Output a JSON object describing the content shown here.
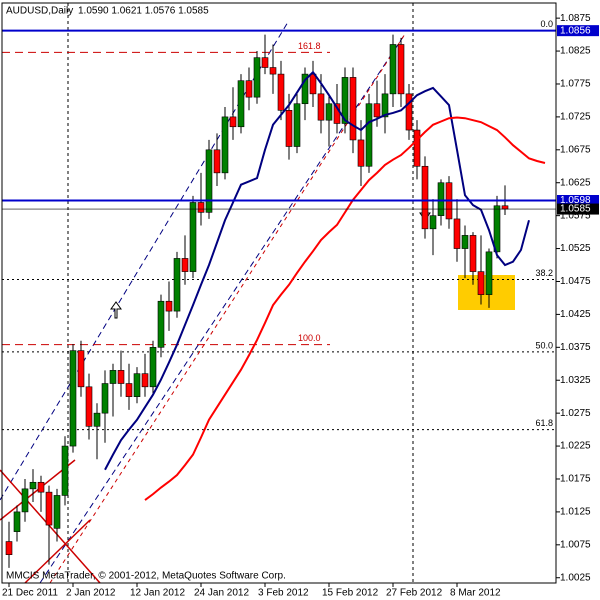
{
  "chart_data": {
    "type": "candlestick",
    "title": "AUDUSD,Daily",
    "ohlc_label": "1.0590 1.0621 1.0576 1.0585",
    "footer": "MMCIS MetaTrader, © 2001-2012, MetaQuotes Software Corp.",
    "categories": [
      "21 Dec 2011",
      null,
      null,
      null,
      null,
      null,
      null,
      null,
      "2 Jan 2012",
      null,
      null,
      null,
      null,
      null,
      null,
      null,
      "12 Jan 2012",
      null,
      null,
      null,
      null,
      null,
      null,
      null,
      "24 Jan 2012",
      null,
      null,
      null,
      null,
      null,
      null,
      null,
      "3 Feb 2012",
      null,
      null,
      null,
      null,
      null,
      null,
      null,
      "15 Feb 2012",
      null,
      null,
      null,
      null,
      null,
      null,
      null,
      "27 Feb 2012",
      null,
      null,
      null,
      null,
      null,
      null,
      null,
      "8 Mar 2012",
      null,
      null,
      null,
      null,
      null,
      null,
      null,
      null,
      null,
      null,
      null
    ],
    "open": [
      1.008,
      1.0095,
      1.0125,
      1.016,
      1.017,
      1.0155,
      1.01,
      1.015,
      1.0225,
      1.037,
      1.0315,
      1.0255,
      1.0275,
      1.032,
      1.034,
      1.032,
      1.03,
      1.0335,
      1.0315,
      1.0375,
      1.0445,
      1.043,
      1.051,
      1.049,
      1.0595,
      1.058,
      1.0675,
      1.064,
      1.0725,
      1.071,
      1.078,
      1.0755,
      1.0815,
      1.08,
      1.079,
      1.0735,
      1.068,
      1.0745,
      1.079,
      1.076,
      1.072,
      1.0745,
      1.0715,
      1.0785,
      1.069,
      1.065,
      1.0745,
      1.0725,
      1.076,
      1.0835,
      1.076,
      1.0705,
      1.065,
      1.0555,
      1.0575,
      1.0625,
      1.057,
      1.0525,
      1.0545,
      1.049,
      1.0455,
      1.052,
      1.059,
      null,
      null,
      null,
      null,
      null
    ],
    "high": [
      1.011,
      1.0135,
      1.0175,
      1.019,
      1.018,
      1.0165,
      1.016,
      1.024,
      1.038,
      1.0385,
      1.0335,
      1.029,
      1.034,
      1.035,
      1.037,
      1.035,
      1.0345,
      1.0365,
      1.0385,
      1.0455,
      1.0475,
      1.052,
      1.0545,
      1.0605,
      1.064,
      1.069,
      1.07,
      1.074,
      1.077,
      1.079,
      1.08,
      1.0825,
      1.085,
      1.0835,
      1.081,
      1.076,
      1.076,
      1.08,
      1.081,
      1.079,
      1.076,
      1.0775,
      1.08,
      1.08,
      1.072,
      1.076,
      1.078,
      1.079,
      1.085,
      1.0845,
      1.0775,
      1.072,
      1.0665,
      1.06,
      1.063,
      1.0635,
      1.06,
      1.056,
      1.055,
      1.0545,
      1.0525,
      1.0605,
      1.0621,
      null,
      null,
      null,
      null,
      null
    ],
    "low": [
      1.004,
      1.008,
      1.011,
      1.014,
      1.0125,
      1.0045,
      1.008,
      1.0135,
      1.0215,
      1.03,
      1.0235,
      1.0205,
      1.023,
      1.027,
      1.03,
      1.028,
      1.029,
      1.03,
      1.0305,
      1.036,
      1.04,
      1.042,
      1.047,
      1.048,
      1.056,
      1.057,
      1.062,
      1.063,
      1.069,
      1.07,
      1.0735,
      1.0745,
      1.079,
      1.076,
      1.072,
      1.066,
      1.067,
      1.072,
      1.074,
      1.07,
      1.068,
      1.07,
      1.07,
      1.067,
      1.062,
      1.064,
      1.071,
      1.07,
      1.074,
      1.074,
      1.069,
      1.063,
      1.054,
      1.0515,
      1.056,
      1.0555,
      1.0505,
      1.048,
      1.047,
      1.044,
      1.0435,
      1.051,
      1.0576,
      null,
      null,
      null,
      null,
      null
    ],
    "close": [
      1.006,
      1.0125,
      1.016,
      1.017,
      1.0155,
      1.0105,
      1.015,
      1.0225,
      1.037,
      1.0315,
      1.0255,
      1.0275,
      1.032,
      1.034,
      1.032,
      1.03,
      1.0335,
      1.0315,
      1.0375,
      1.0445,
      1.043,
      1.051,
      1.049,
      1.0595,
      1.058,
      1.0675,
      1.064,
      1.0725,
      1.071,
      1.078,
      1.0755,
      1.0815,
      1.08,
      1.079,
      1.0735,
      1.068,
      1.0745,
      1.079,
      1.076,
      1.072,
      1.0745,
      1.0715,
      1.0785,
      1.069,
      1.065,
      1.0745,
      1.0725,
      1.076,
      1.0835,
      1.076,
      1.0705,
      1.065,
      1.0555,
      1.0575,
      1.0625,
      1.057,
      1.0525,
      1.0545,
      1.049,
      1.0455,
      1.052,
      1.059,
      1.0585,
      null,
      null,
      null,
      null,
      null
    ],
    "up_color": "#008000",
    "down_color": "#ff0000",
    "wick_color": "#000000",
    "lines": [
      {
        "color": "#000080",
        "values": [
          null,
          null,
          null,
          null,
          null,
          null,
          null,
          null,
          null,
          null,
          null,
          null,
          1.0189,
          1.0212,
          1.0234,
          1.025,
          1.0265,
          1.0284,
          1.0303,
          1.0326,
          1.0352,
          1.0379,
          1.0409,
          1.0439,
          1.047,
          1.05,
          1.0534,
          1.0568,
          1.0595,
          1.0622,
          1.0627,
          1.0632,
          1.0675,
          1.0713,
          1.0728,
          1.0743,
          1.0762,
          1.0781,
          1.0793,
          1.0776,
          1.0758,
          1.0739,
          1.072,
          1.0712,
          1.0705,
          1.0717,
          1.0722,
          1.0728,
          1.0731,
          1.0735,
          1.0746,
          1.0758,
          1.0764,
          1.0769,
          1.0756,
          1.0743,
          1.0675,
          1.0606,
          1.0591,
          1.0584,
          1.0553,
          1.0515,
          1.05,
          1.0505,
          1.0523,
          1.0568,
          null,
          null
        ]
      },
      {
        "color": "#ff0000",
        "values": [
          null,
          null,
          null,
          null,
          null,
          null,
          null,
          null,
          null,
          null,
          null,
          null,
          null,
          null,
          null,
          null,
          null,
          1.0143,
          1.0152,
          1.0162,
          1.0171,
          1.0181,
          1.0196,
          1.0212,
          1.0238,
          1.0265,
          1.0284,
          1.0303,
          1.0322,
          1.0341,
          1.0363,
          1.0386,
          1.0412,
          1.0439,
          1.0455,
          1.047,
          1.0488,
          1.0505,
          1.0521,
          1.0538,
          1.055,
          1.0561,
          1.058,
          1.0599,
          1.0614,
          1.0629,
          1.064,
          1.0652,
          1.066,
          1.0667,
          1.0678,
          1.069,
          1.0702,
          1.0713,
          1.0718,
          1.0723,
          1.0724,
          1.0723,
          1.072,
          1.0717,
          1.0711,
          1.0705,
          1.0694,
          1.0682,
          1.0672,
          1.0662,
          1.0658,
          1.0655
        ]
      }
    ],
    "hlines": [
      {
        "value": 1.0856,
        "color": "#0000cc"
      },
      {
        "value": 1.0598,
        "color": "#0000cc"
      },
      {
        "value": 1.0585,
        "color": "#000000"
      }
    ],
    "fib_levels": [
      {
        "value": 1.0856,
        "label": "0.0"
      },
      {
        "value": 1.0478,
        "label": "38.2"
      },
      {
        "value": 1.0368,
        "label": "50.0"
      },
      {
        "value": 1.025,
        "label": "61.8"
      }
    ],
    "fib_extensions": [
      {
        "value": 1.0823,
        "label": "161.8"
      },
      {
        "value": 1.0379,
        "label": "100.0"
      }
    ],
    "ylim": [
      1.0017,
      1.0898
    ],
    "yticks": [
      1.0025,
      1.0075,
      1.0125,
      1.0175,
      1.0225,
      1.0275,
      1.0325,
      1.0375,
      1.0425,
      1.0475,
      1.0525,
      1.0575,
      1.0625,
      1.0675,
      1.0725,
      1.0775,
      1.0825,
      1.0875
    ]
  }
}
